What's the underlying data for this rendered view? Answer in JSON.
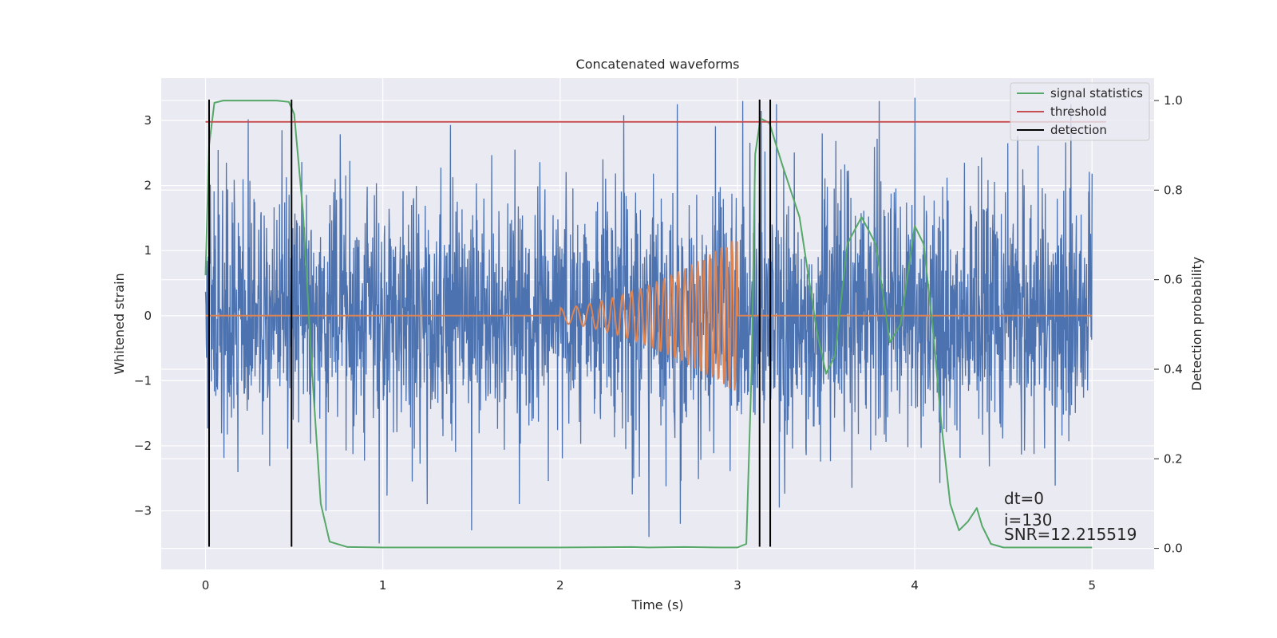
{
  "chart_data": {
    "type": "line",
    "title": "Concatenated waveforms",
    "xlabel": "Time (s)",
    "ylabel": "Whitened strain",
    "y2label": "Detection probability",
    "xlim": [
      -0.25,
      5.35
    ],
    "ylim": [
      -3.9,
      3.65
    ],
    "y2lim": [
      -0.047,
      1.05
    ],
    "xticks": [
      0,
      1,
      2,
      3,
      4,
      5
    ],
    "yticks": [
      -3,
      -2,
      -1,
      0,
      1,
      2,
      3
    ],
    "y2ticks": [
      0.0,
      0.2,
      0.4,
      0.6,
      0.8,
      1.0
    ],
    "xtick_labels": [
      "0",
      "1",
      "2",
      "3",
      "4",
      "5"
    ],
    "ytick_labels": [
      "−3",
      "−2",
      "−1",
      "0",
      "1",
      "2",
      "3"
    ],
    "y2tick_labels": [
      "0.0",
      "0.2",
      "0.4",
      "0.6",
      "0.8",
      "1.0"
    ],
    "grid": true,
    "legend_position": "top-right",
    "series": [
      {
        "name": "",
        "axis": "left",
        "color": "#4c72b0",
        "kind": "noise",
        "x_range": [
          0,
          5
        ],
        "std": 1.0,
        "peak_examples": [
          [
            0.43,
            2.85
          ],
          [
            1.5,
            -3.3
          ],
          [
            2.5,
            -3.4
          ],
          [
            2.66,
            3.25
          ],
          [
            3.03,
            3.3
          ],
          [
            3.22,
            3.25
          ],
          [
            3.8,
            3.3
          ],
          [
            4.28,
            2.35
          ],
          [
            4.61,
            2.25
          ],
          [
            4.88,
            3.25
          ]
        ]
      },
      {
        "name": "",
        "axis": "left",
        "color": "#dd8452",
        "kind": "chirp",
        "x_range": [
          0,
          5
        ],
        "chirp_start": 2.0,
        "chirp_end": 3.0,
        "amp_start": 0.12,
        "amp_end": 1.2
      },
      {
        "name": "signal statistics",
        "axis": "right",
        "color": "#55a868",
        "x": [
          0,
          0.02,
          0.05,
          0.1,
          0.2,
          0.3,
          0.4,
          0.47,
          0.5,
          0.55,
          0.6,
          0.65,
          0.7,
          0.8,
          1.0,
          2.0,
          2.4,
          2.5,
          2.7,
          2.9,
          3.0,
          3.05,
          3.08,
          3.1,
          3.13,
          3.18,
          3.25,
          3.35,
          3.45,
          3.5,
          3.55,
          3.62,
          3.7,
          3.78,
          3.86,
          3.92,
          4.0,
          4.05,
          4.1,
          4.15,
          4.2,
          4.25,
          4.3,
          4.35,
          4.38,
          4.43,
          4.5,
          4.7,
          5.0
        ],
        "values": [
          0.61,
          0.9,
          0.995,
          1.0,
          1.0,
          1.0,
          1.0,
          0.997,
          0.97,
          0.75,
          0.4,
          0.1,
          0.015,
          0.003,
          0.002,
          0.002,
          0.003,
          0.002,
          0.003,
          0.002,
          0.002,
          0.01,
          0.4,
          0.88,
          0.96,
          0.95,
          0.86,
          0.74,
          0.48,
          0.39,
          0.43,
          0.68,
          0.74,
          0.68,
          0.46,
          0.5,
          0.72,
          0.68,
          0.5,
          0.28,
          0.1,
          0.04,
          0.06,
          0.09,
          0.05,
          0.01,
          0.002,
          0.002,
          0.002
        ]
      },
      {
        "name": "threshold",
        "axis": "left",
        "color": "#c44e52",
        "x": [
          0,
          5.08
        ],
        "values": [
          2.98,
          2.98
        ]
      },
      {
        "name": "detection",
        "axis": "left",
        "color": "#000000",
        "kind": "vlines",
        "x": [
          0.02,
          0.485,
          3.125,
          3.185
        ],
        "y_range": [
          -3.55,
          3.32
        ]
      }
    ],
    "annotations": [
      "dt=0",
      "i=130",
      "SNR=12.215519"
    ],
    "colors": {
      "background": "#eaeaf2",
      "grid": "#ffffff",
      "text": "#262626"
    }
  }
}
